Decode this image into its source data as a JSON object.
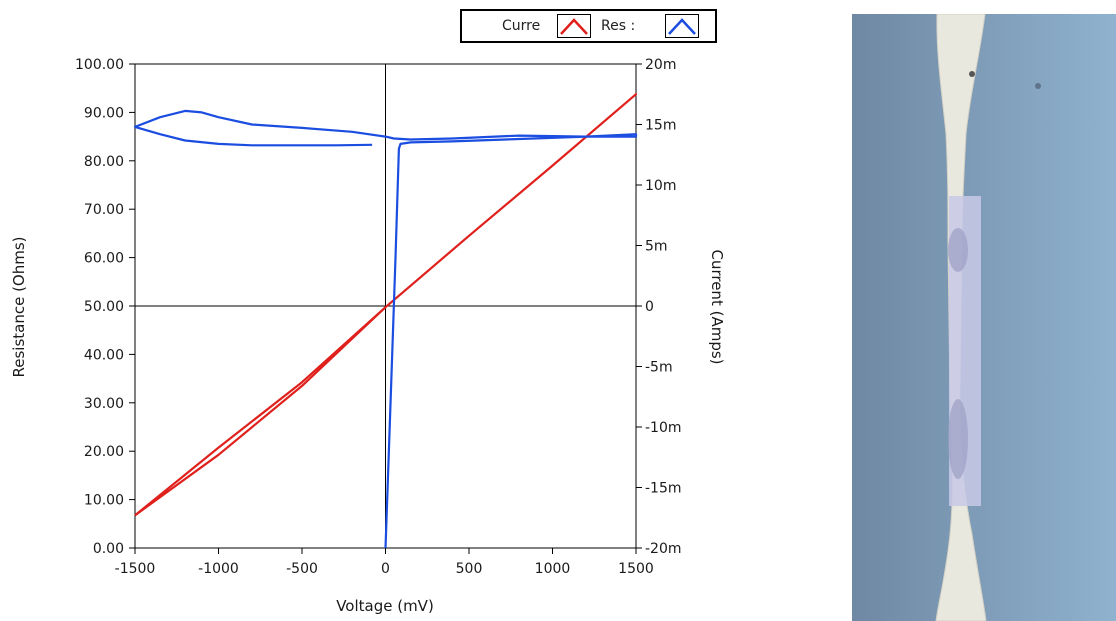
{
  "chart_data": {
    "type": "line",
    "title": "",
    "xlabel": "Voltage (mV)",
    "ylabel_left": "Resistance (Ohms)",
    "ylabel_right": "Current (Amps)",
    "xlim": [
      -1500,
      1500
    ],
    "ylim_left": [
      0,
      100
    ],
    "ylim_right": [
      -0.02,
      0.02
    ],
    "x_ticks": [
      "-1500",
      "-1000",
      "-500",
      "0",
      "500",
      "1000",
      "1500"
    ],
    "y_ticks_left": [
      "0.00",
      "10.00",
      "20.00",
      "30.00",
      "40.00",
      "50.00",
      "60.00",
      "70.00",
      "80.00",
      "90.00",
      "100.00"
    ],
    "y_ticks_right": [
      "-20m",
      "-15m",
      "-10m",
      "-5m",
      "0",
      "5m",
      "10m",
      "15m",
      "20m"
    ],
    "grid": false,
    "legend_position": "top-right",
    "series": [
      {
        "name": "Curre",
        "axis": "right",
        "color": "#e0201c",
        "x": [
          -1500,
          -1000,
          -500,
          0,
          500,
          1000,
          1500,
          1000,
          500,
          0,
          -500,
          -1000,
          -1500
        ],
        "y": [
          -0.0173,
          -0.0123,
          -0.0066,
          -0.0001,
          0.0058,
          0.0116,
          0.0175,
          0.0116,
          0.0058,
          -0.0001,
          -0.0063,
          -0.0117,
          -0.0173
        ]
      },
      {
        "name": "Res :",
        "axis": "left",
        "color": "#1a4de0",
        "x": [
          0,
          10,
          40,
          60,
          80,
          90,
          150,
          400,
          800,
          1200,
          1500,
          1500,
          1200,
          800,
          400,
          150,
          50,
          0,
          -200,
          -500,
          -800,
          -1000,
          -1100,
          -1200,
          -1350,
          -1500,
          -1350,
          -1200,
          -1000,
          -800,
          -500,
          -300,
          -80
        ],
        "y": [
          0,
          10,
          40,
          60,
          82.5,
          83.5,
          83.8,
          84.0,
          84.5,
          85.0,
          85.5,
          85.0,
          85.0,
          85.2,
          84.6,
          84.4,
          84.6,
          85.0,
          86.0,
          86.8,
          87.5,
          89.0,
          90.0,
          90.3,
          89.0,
          87.0,
          85.5,
          84.2,
          83.5,
          83.2,
          83.2,
          83.2,
          83.3
        ]
      }
    ]
  },
  "legend": {
    "items": [
      {
        "label": "Curre",
        "color": "#e0201c"
      },
      {
        "label": "Res :",
        "color": "#1a4de0"
      }
    ]
  }
}
